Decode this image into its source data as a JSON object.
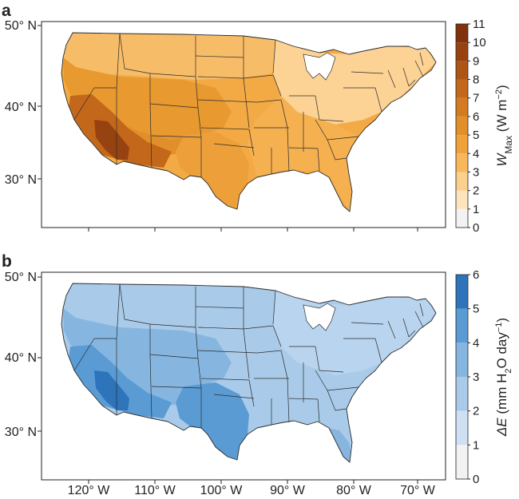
{
  "panels": [
    {
      "id": "a",
      "letter": "a",
      "lat_labels": [
        "50° N",
        "40° N",
        "30° N"
      ],
      "colorbar": {
        "ticks": [
          "0",
          "1",
          "2",
          "3",
          "4",
          "5",
          "6",
          "7",
          "8",
          "9",
          "10",
          "11"
        ],
        "label_main": "W",
        "label_sub": "Max",
        "label_units_pre": " (W m",
        "label_units_sup": "−2",
        "label_units_post": ")",
        "colors": [
          "#f2f2f2",
          "#fde4bd",
          "#fbcf8c",
          "#f8b75a",
          "#f0a23a",
          "#e28f2b",
          "#d47b22",
          "#c3681b",
          "#ae5515",
          "#974311",
          "#80320c"
        ]
      },
      "base_fill": "#f3aa45",
      "regions": [
        {
          "name": "northern-tier",
          "color": "#f7bc68"
        },
        {
          "name": "great-lakes-northeast",
          "color": "#fcd295"
        },
        {
          "name": "southeast-plains",
          "color": "#f5b04f"
        },
        {
          "name": "four-corners",
          "color": "#e28f2b"
        },
        {
          "name": "west-interior",
          "color": "#e8992f"
        },
        {
          "name": "desert-southwest",
          "color": "#c3681b"
        },
        {
          "name": "lower-colorado-core",
          "color": "#974311"
        },
        {
          "name": "texas-south",
          "color": "#eda03a"
        }
      ]
    },
    {
      "id": "b",
      "letter": "b",
      "lat_labels": [
        "50° N",
        "40° N",
        "30° N"
      ],
      "colorbar": {
        "ticks": [
          "0",
          "1",
          "2",
          "3",
          "4",
          "5",
          "6"
        ],
        "label_main": "ΔE",
        "label_units_pre": " (mm H",
        "label_units_sub": "2",
        "label_units_mid": "O day",
        "label_units_sup": "−1",
        "label_units_post": ")",
        "colors": [
          "#f2f2f2",
          "#cfe0f3",
          "#a9cbe9",
          "#86b6e0",
          "#5a9bd4",
          "#2e74bb"
        ]
      },
      "base_fill": "#a9cbe9",
      "regions": [
        {
          "name": "northern-tier",
          "color": "#a9cbe9"
        },
        {
          "name": "great-lakes-northeast",
          "color": "#b9d4ee"
        },
        {
          "name": "southeast-plains",
          "color": "#a9cbe9"
        },
        {
          "name": "west-interior",
          "color": "#86b6e0"
        },
        {
          "name": "four-corners",
          "color": "#86b6e0"
        },
        {
          "name": "desert-southwest",
          "color": "#5a9bd4"
        },
        {
          "name": "lower-colorado-core",
          "color": "#2e74bb"
        },
        {
          "name": "texas-south",
          "color": "#5a9bd4"
        },
        {
          "name": "florida",
          "color": "#86b6e0"
        }
      ]
    }
  ],
  "lon_labels": [
    "120° W",
    "110° W",
    "100° W",
    "90° W",
    "80° W",
    "70° W"
  ]
}
